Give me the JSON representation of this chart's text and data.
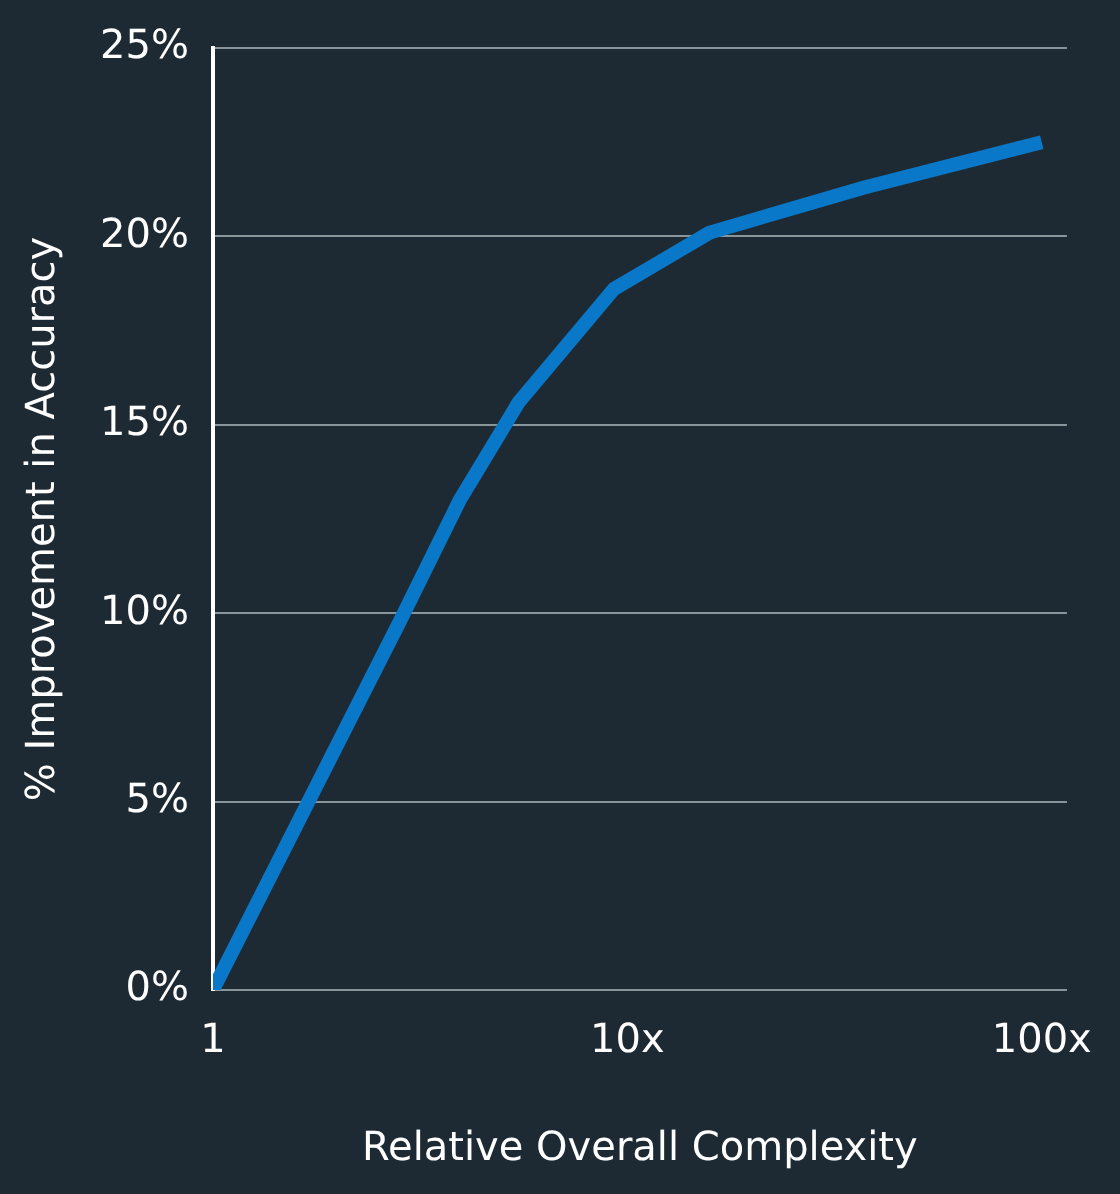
{
  "chart_data": {
    "type": "line",
    "xlabel": "Relative Overall Complexity",
    "ylabel": "% Improvement in Accuracy",
    "x": [
      1,
      2.83,
      3.94,
      5.47,
      9.27,
      15.8,
      37.3,
      100
    ],
    "series": [
      {
        "color": "#0a78c8",
        "values": [
          0,
          9.8,
          13,
          15.6,
          18.6,
          20.1,
          21.3,
          22.5
        ]
      }
    ],
    "log": "x",
    "xlim": [
      1,
      115
    ],
    "xticks": [
      {
        "value": 1,
        "label": "1"
      },
      {
        "value": 10,
        "label": "10x"
      },
      {
        "value": 100,
        "label": "100x"
      }
    ],
    "ylim": [
      0,
      25
    ],
    "yticks": [
      {
        "value": 0,
        "label": "0%"
      },
      {
        "value": 5,
        "label": "5%"
      },
      {
        "value": 10,
        "label": "10%"
      },
      {
        "value": 15,
        "label": "15%"
      },
      {
        "value": 20,
        "label": "20%"
      },
      {
        "value": 25,
        "label": "25%"
      }
    ],
    "grid": "y",
    "legend": false,
    "marker": "none",
    "line_style": "solid"
  }
}
